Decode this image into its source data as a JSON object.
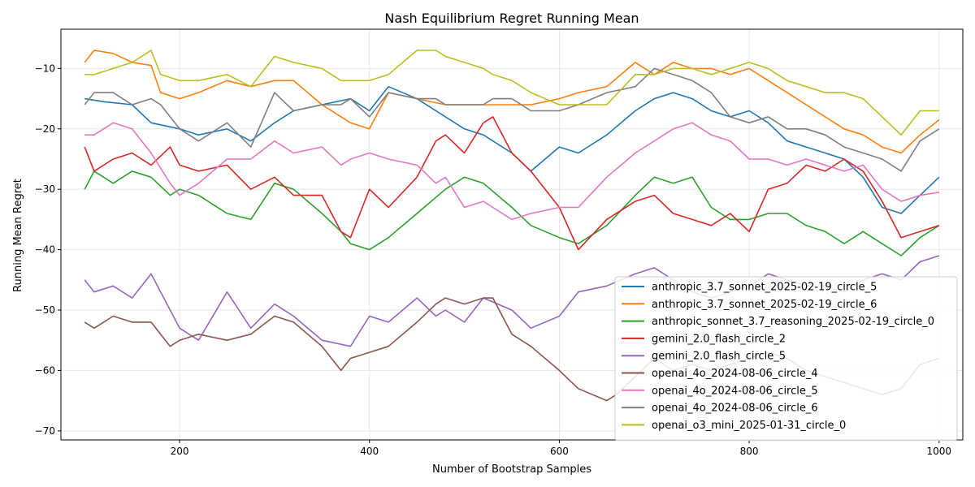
{
  "chart_data": {
    "type": "line",
    "title": "Nash Equilibrium Regret Running Mean",
    "xlabel": "Number of Bootstrap Samples",
    "ylabel": "Running Mean Regret",
    "xlim": [
      75,
      1025
    ],
    "ylim": [
      -71.5,
      -3.5
    ],
    "xticks": [
      200,
      400,
      600,
      800,
      1000
    ],
    "yticks": [
      -70,
      -60,
      -50,
      -40,
      -30,
      -20,
      -10
    ],
    "ytick_labels": [
      "−70",
      "−60",
      "−50",
      "−40",
      "−30",
      "−20",
      "−10"
    ],
    "grid": true,
    "legend_position": "lower-right",
    "series": [
      {
        "name": "anthropic_3.7_sonnet_2025-02-19_circle_5",
        "color": "#1f77b4",
        "x": [
          100,
          120,
          150,
          170,
          200,
          220,
          250,
          275,
          300,
          320,
          350,
          380,
          400,
          420,
          450,
          480,
          500,
          520,
          550,
          570,
          600,
          620,
          650,
          680,
          700,
          720,
          740,
          760,
          780,
          800,
          820,
          840,
          860,
          880,
          900,
          920,
          940,
          960,
          980,
          1000
        ],
        "y": [
          -15,
          -15.5,
          -16,
          -19,
          -20,
          -21,
          -20,
          -22,
          -19,
          -17,
          -16,
          -15,
          -17,
          -13,
          -15,
          -18,
          -20,
          -21,
          -24,
          -27,
          -23,
          -24,
          -21,
          -17,
          -15,
          -14,
          -15,
          -17,
          -18,
          -17,
          -19,
          -22,
          -23,
          -24,
          -25,
          -28,
          -33,
          -34,
          -31,
          -28
        ]
      },
      {
        "name": "anthropic_3.7_sonnet_2025-02-19_circle_6",
        "color": "#ff7f0e",
        "x": [
          100,
          110,
          130,
          150,
          170,
          180,
          200,
          220,
          250,
          275,
          300,
          320,
          350,
          380,
          400,
          420,
          450,
          480,
          500,
          520,
          550,
          570,
          600,
          620,
          650,
          680,
          700,
          720,
          740,
          760,
          780,
          800,
          820,
          840,
          860,
          880,
          900,
          920,
          940,
          960,
          980,
          1000
        ],
        "y": [
          -9,
          -7,
          -7.5,
          -9,
          -9.5,
          -14,
          -15,
          -14,
          -12,
          -13,
          -12,
          -12,
          -16,
          -19,
          -20,
          -14,
          -15,
          -16,
          -16,
          -16,
          -16,
          -16,
          -15,
          -14,
          -13,
          -9,
          -11,
          -9,
          -10,
          -10,
          -11,
          -10,
          -12,
          -14,
          -16,
          -18,
          -20,
          -21,
          -23,
          -24,
          -21,
          -18.5
        ]
      },
      {
        "name": "anthropic_sonnet_3.7_reasoning_2025-02-19_circle_0",
        "color": "#2ca02c",
        "x": [
          100,
          110,
          130,
          150,
          170,
          190,
          200,
          220,
          250,
          275,
          300,
          320,
          350,
          370,
          380,
          400,
          420,
          450,
          480,
          500,
          520,
          550,
          570,
          600,
          620,
          650,
          680,
          700,
          720,
          740,
          760,
          780,
          800,
          820,
          840,
          860,
          880,
          900,
          920,
          940,
          960,
          980,
          1000
        ],
        "y": [
          -30,
          -27,
          -29,
          -27,
          -28,
          -31,
          -30,
          -31,
          -34,
          -35,
          -29,
          -30,
          -34,
          -37,
          -39,
          -40,
          -38,
          -34,
          -30,
          -28,
          -29,
          -33,
          -36,
          -38,
          -39,
          -36,
          -31,
          -28,
          -29,
          -28,
          -33,
          -35,
          -35,
          -34,
          -34,
          -36,
          -37,
          -39,
          -37,
          -39,
          -41,
          -38,
          -36
        ]
      },
      {
        "name": "gemini_2.0_flash_circle_2",
        "color": "#d62728",
        "x": [
          100,
          110,
          130,
          150,
          170,
          190,
          200,
          220,
          250,
          275,
          300,
          320,
          350,
          370,
          380,
          400,
          420,
          450,
          470,
          480,
          500,
          520,
          530,
          550,
          570,
          600,
          620,
          650,
          680,
          700,
          720,
          740,
          760,
          780,
          800,
          820,
          840,
          860,
          880,
          900,
          920,
          940,
          960,
          980,
          1000
        ],
        "y": [
          -23,
          -27,
          -25,
          -24,
          -26,
          -23,
          -26,
          -27,
          -26,
          -30,
          -28,
          -31,
          -31,
          -37,
          -38,
          -30,
          -33,
          -28,
          -22,
          -21,
          -24,
          -19,
          -18,
          -24,
          -27,
          -33,
          -40,
          -35,
          -32,
          -31,
          -34,
          -35,
          -36,
          -34,
          -37,
          -30,
          -29,
          -26,
          -27,
          -25,
          -27,
          -32,
          -38,
          -37,
          -36
        ]
      },
      {
        "name": "gemini_2.0_flash_circle_5",
        "color": "#9467bd",
        "x": [
          100,
          110,
          130,
          150,
          170,
          180,
          200,
          220,
          250,
          275,
          300,
          320,
          350,
          380,
          400,
          420,
          450,
          470,
          480,
          500,
          520,
          550,
          570,
          600,
          620,
          650,
          680,
          700,
          720,
          740,
          760,
          780,
          800,
          820,
          840,
          860,
          880,
          900,
          920,
          940,
          960,
          980,
          1000
        ],
        "y": [
          -45,
          -47,
          -46,
          -48,
          -44,
          -47,
          -53,
          -55,
          -47,
          -53,
          -49,
          -51,
          -55,
          -56,
          -51,
          -52,
          -48,
          -51,
          -50,
          -52,
          -48,
          -50,
          -53,
          -51,
          -47,
          -46,
          -44,
          -43,
          -45,
          -47,
          -48,
          -47,
          -46,
          -44,
          -45,
          -46,
          -46,
          -47,
          -45,
          -44,
          -45,
          -42,
          -41
        ]
      },
      {
        "name": "openai_4o_2024-08-06_circle_4",
        "color": "#8c564b",
        "x": [
          100,
          110,
          130,
          150,
          170,
          190,
          200,
          220,
          250,
          275,
          300,
          320,
          350,
          370,
          380,
          400,
          420,
          450,
          470,
          480,
          500,
          520,
          530,
          550,
          570,
          600,
          620,
          650,
          660,
          680,
          700,
          720,
          740,
          760,
          780,
          800,
          820,
          840,
          860,
          880,
          900,
          920,
          940,
          960,
          980,
          1000
        ],
        "y": [
          -52,
          -53,
          -51,
          -52,
          -52,
          -56,
          -55,
          -54,
          -55,
          -54,
          -51,
          -52,
          -56,
          -60,
          -58,
          -57,
          -56,
          -52,
          -49,
          -48,
          -49,
          -48,
          -48,
          -54,
          -56,
          -60,
          -63,
          -65,
          -64,
          -61,
          -58,
          -60,
          -59,
          -60,
          -59,
          -58,
          -57,
          -58,
          -60,
          -61,
          -62,
          -63,
          -64,
          -63,
          -59,
          -58
        ]
      },
      {
        "name": "openai_4o_2024-08-06_circle_5",
        "color": "#e377c2",
        "x": [
          100,
          110,
          130,
          150,
          170,
          190,
          200,
          220,
          250,
          275,
          300,
          320,
          350,
          370,
          380,
          400,
          420,
          450,
          470,
          480,
          500,
          520,
          530,
          550,
          570,
          600,
          620,
          650,
          680,
          700,
          720,
          740,
          760,
          780,
          800,
          820,
          840,
          860,
          880,
          900,
          920,
          940,
          960,
          980,
          1000
        ],
        "y": [
          -21,
          -21,
          -19,
          -20,
          -24,
          -29,
          -31,
          -29,
          -25,
          -25,
          -22,
          -24,
          -23,
          -26,
          -25,
          -24,
          -25,
          -26,
          -29,
          -28,
          -33,
          -32,
          -33,
          -35,
          -34,
          -33,
          -33,
          -28,
          -24,
          -22,
          -20,
          -19,
          -21,
          -22,
          -25,
          -25,
          -26,
          -25,
          -26,
          -27,
          -26,
          -30,
          -32,
          -31,
          -30.5
        ]
      },
      {
        "name": "openai_4o_2024-08-06_circle_6",
        "color": "#7f7f7f",
        "x": [
          100,
          110,
          130,
          150,
          170,
          180,
          200,
          220,
          250,
          275,
          300,
          320,
          350,
          370,
          380,
          400,
          420,
          450,
          470,
          480,
          500,
          520,
          530,
          550,
          570,
          600,
          620,
          650,
          680,
          700,
          720,
          740,
          760,
          780,
          800,
          820,
          840,
          860,
          880,
          900,
          920,
          940,
          960,
          980,
          1000
        ],
        "y": [
          -16,
          -14,
          -14,
          -16,
          -15,
          -16,
          -20,
          -22,
          -19,
          -23,
          -14,
          -17,
          -16,
          -16,
          -15,
          -18,
          -14,
          -15,
          -15,
          -16,
          -16,
          -16,
          -15,
          -15,
          -17,
          -17,
          -16,
          -14,
          -13,
          -10,
          -11,
          -12,
          -14,
          -18,
          -19,
          -18,
          -20,
          -20,
          -21,
          -23,
          -24,
          -25,
          -27,
          -22,
          -20
        ]
      },
      {
        "name": "openai_o3_mini_2025-01-31_circle_0",
        "color": "#bcbd22",
        "x": [
          100,
          110,
          130,
          150,
          170,
          180,
          200,
          220,
          250,
          275,
          300,
          320,
          350,
          370,
          380,
          400,
          420,
          450,
          470,
          480,
          500,
          520,
          530,
          550,
          570,
          600,
          620,
          650,
          680,
          700,
          720,
          740,
          760,
          780,
          800,
          820,
          840,
          860,
          880,
          900,
          920,
          940,
          960,
          980,
          1000
        ],
        "y": [
          -11,
          -11,
          -10,
          -9,
          -7,
          -11,
          -12,
          -12,
          -11,
          -13,
          -8,
          -9,
          -10,
          -12,
          -12,
          -12,
          -11,
          -7,
          -7,
          -8,
          -9,
          -10,
          -11,
          -12,
          -14,
          -16,
          -16,
          -16,
          -11,
          -11,
          -10,
          -10,
          -11,
          -10,
          -9,
          -10,
          -12,
          -13,
          -14,
          -14,
          -15,
          -18,
          -21,
          -17,
          -17
        ]
      }
    ]
  }
}
